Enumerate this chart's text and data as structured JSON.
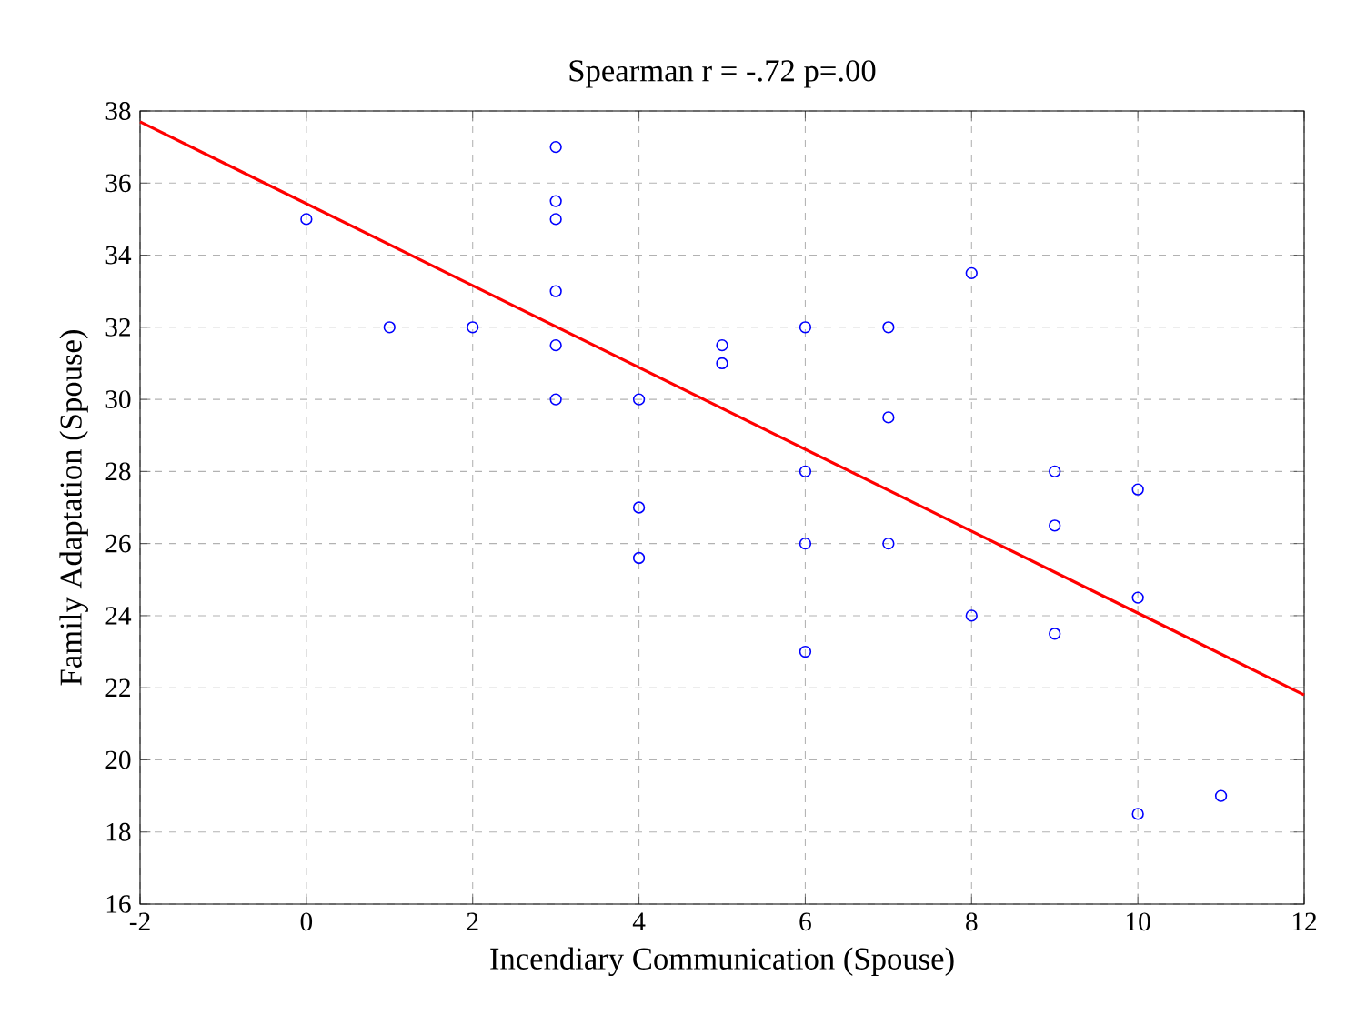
{
  "chart_data": {
    "type": "scatter",
    "title": "Spearman r = -.72 p=.00",
    "xlabel": "Incendiary Communication (Spouse)",
    "ylabel": "Family Adaptation (Spouse)",
    "xlim": [
      -2,
      12
    ],
    "xticks": [
      -2,
      0,
      2,
      4,
      6,
      8,
      10,
      12
    ],
    "ylim": [
      16,
      38
    ],
    "yticks": [
      16,
      18,
      20,
      22,
      24,
      26,
      28,
      30,
      32,
      34,
      36,
      38
    ],
    "grid": true,
    "series": [
      {
        "marker": "circle",
        "color": "#0000ff",
        "x": [
          0,
          1,
          2,
          3,
          3,
          3,
          3,
          3,
          3,
          4,
          4,
          4,
          5,
          5,
          6,
          6,
          6,
          6,
          7,
          7,
          7,
          8,
          8,
          9,
          9,
          9,
          10,
          10,
          10,
          11
        ],
        "values": [
          35,
          32,
          32,
          37,
          35.5,
          35,
          33,
          31.5,
          30,
          30,
          27,
          25.6,
          31.5,
          31,
          32,
          28,
          26,
          23,
          32,
          29.5,
          26,
          33.5,
          24,
          28,
          26.5,
          23.5,
          27.5,
          24.5,
          18.5,
          19
        ]
      },
      {
        "type": "line",
        "color": "#ff0000",
        "x": [
          -2,
          12
        ],
        "values": [
          37.7,
          21.8
        ]
      }
    ]
  }
}
